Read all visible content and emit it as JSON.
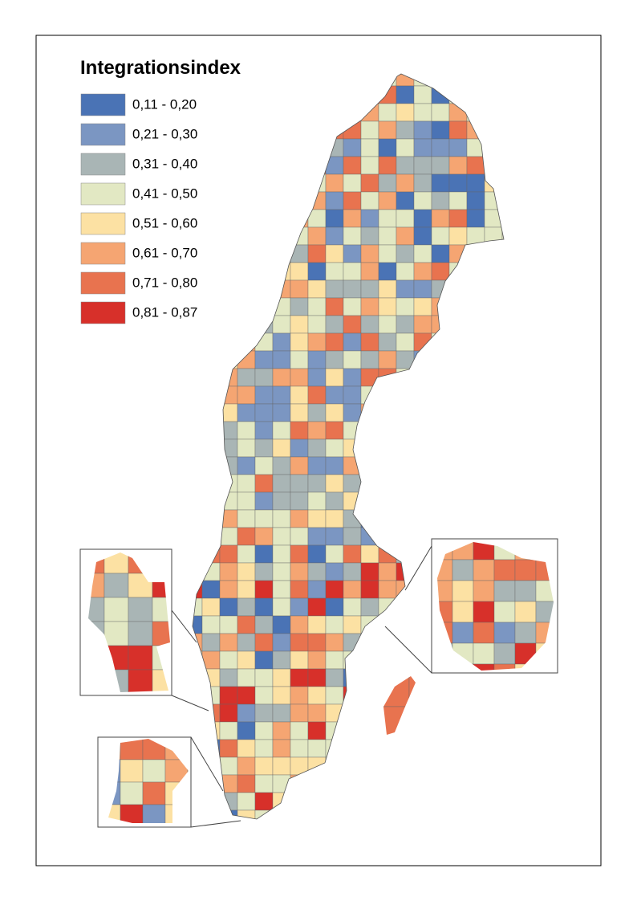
{
  "legend": {
    "title": "Integrationsindex",
    "items": [
      {
        "label": "0,11 - 0,20",
        "color": "#4a73b5"
      },
      {
        "label": "0,21 - 0,30",
        "color": "#7b96c2"
      },
      {
        "label": "0,31 - 0,40",
        "color": "#a9b5b5"
      },
      {
        "label": "0,41 - 0,50",
        "color": "#e2e8c3"
      },
      {
        "label": "0,51 - 0,60",
        "color": "#fce1a3"
      },
      {
        "label": "0,61 - 0,70",
        "color": "#f5a572"
      },
      {
        "label": "0,71 - 0,80",
        "color": "#e8734f"
      },
      {
        "label": "0,81 - 0,87",
        "color": "#d7302a"
      }
    ]
  }
}
